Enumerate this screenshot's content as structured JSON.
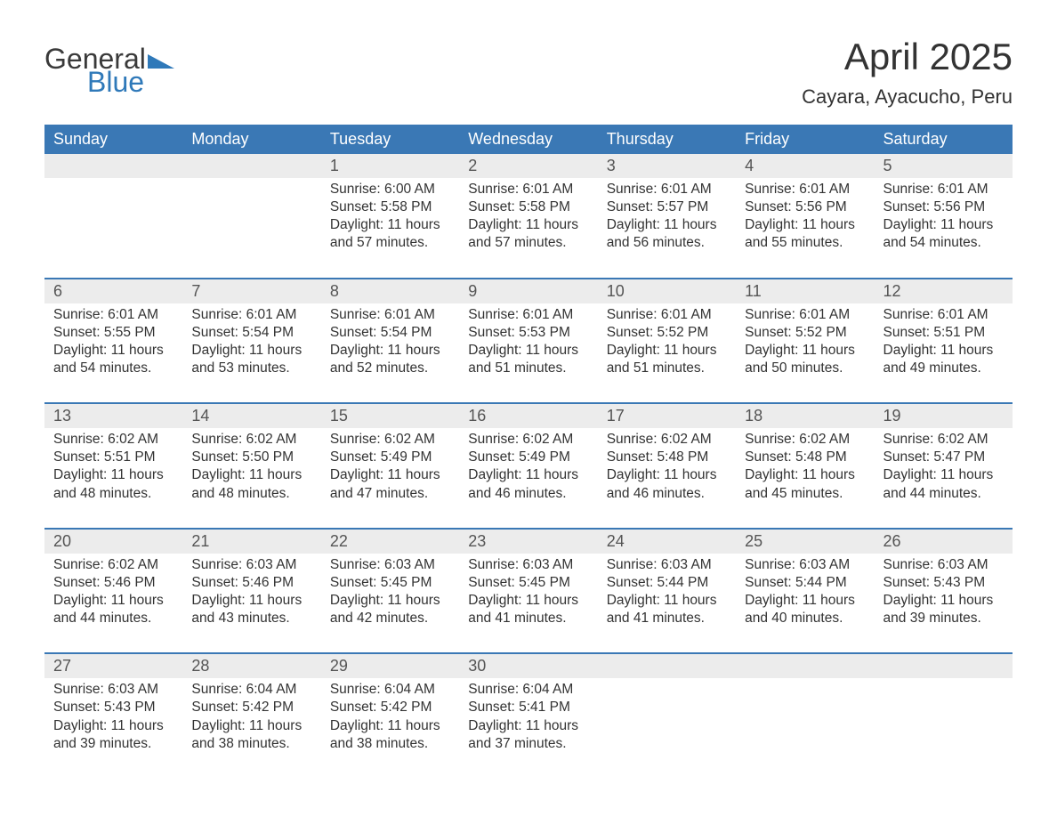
{
  "brand": {
    "word1": "General",
    "word2": "Blue",
    "color_general": "#3a3a3a",
    "color_blue": "#2f79b9",
    "triangle_color": "#2f79b9"
  },
  "title": "April 2025",
  "location": "Cayara, Ayacucho, Peru",
  "colors": {
    "header_bg": "#3a78b5",
    "header_text": "#ffffff",
    "daynum_bg": "#ececec",
    "daynum_text": "#555555",
    "row_border": "#3a78b5",
    "body_text": "#333333",
    "page_bg": "#ffffff"
  },
  "day_headers": [
    "Sunday",
    "Monday",
    "Tuesday",
    "Wednesday",
    "Thursday",
    "Friday",
    "Saturday"
  ],
  "weeks": [
    [
      null,
      null,
      {
        "n": "1",
        "sunrise": "6:00 AM",
        "sunset": "5:58 PM",
        "daylight": "11 hours and 57 minutes."
      },
      {
        "n": "2",
        "sunrise": "6:01 AM",
        "sunset": "5:58 PM",
        "daylight": "11 hours and 57 minutes."
      },
      {
        "n": "3",
        "sunrise": "6:01 AM",
        "sunset": "5:57 PM",
        "daylight": "11 hours and 56 minutes."
      },
      {
        "n": "4",
        "sunrise": "6:01 AM",
        "sunset": "5:56 PM",
        "daylight": "11 hours and 55 minutes."
      },
      {
        "n": "5",
        "sunrise": "6:01 AM",
        "sunset": "5:56 PM",
        "daylight": "11 hours and 54 minutes."
      }
    ],
    [
      {
        "n": "6",
        "sunrise": "6:01 AM",
        "sunset": "5:55 PM",
        "daylight": "11 hours and 54 minutes."
      },
      {
        "n": "7",
        "sunrise": "6:01 AM",
        "sunset": "5:54 PM",
        "daylight": "11 hours and 53 minutes."
      },
      {
        "n": "8",
        "sunrise": "6:01 AM",
        "sunset": "5:54 PM",
        "daylight": "11 hours and 52 minutes."
      },
      {
        "n": "9",
        "sunrise": "6:01 AM",
        "sunset": "5:53 PM",
        "daylight": "11 hours and 51 minutes."
      },
      {
        "n": "10",
        "sunrise": "6:01 AM",
        "sunset": "5:52 PM",
        "daylight": "11 hours and 51 minutes."
      },
      {
        "n": "11",
        "sunrise": "6:01 AM",
        "sunset": "5:52 PM",
        "daylight": "11 hours and 50 minutes."
      },
      {
        "n": "12",
        "sunrise": "6:01 AM",
        "sunset": "5:51 PM",
        "daylight": "11 hours and 49 minutes."
      }
    ],
    [
      {
        "n": "13",
        "sunrise": "6:02 AM",
        "sunset": "5:51 PM",
        "daylight": "11 hours and 48 minutes."
      },
      {
        "n": "14",
        "sunrise": "6:02 AM",
        "sunset": "5:50 PM",
        "daylight": "11 hours and 48 minutes."
      },
      {
        "n": "15",
        "sunrise": "6:02 AM",
        "sunset": "5:49 PM",
        "daylight": "11 hours and 47 minutes."
      },
      {
        "n": "16",
        "sunrise": "6:02 AM",
        "sunset": "5:49 PM",
        "daylight": "11 hours and 46 minutes."
      },
      {
        "n": "17",
        "sunrise": "6:02 AM",
        "sunset": "5:48 PM",
        "daylight": "11 hours and 46 minutes."
      },
      {
        "n": "18",
        "sunrise": "6:02 AM",
        "sunset": "5:48 PM",
        "daylight": "11 hours and 45 minutes."
      },
      {
        "n": "19",
        "sunrise": "6:02 AM",
        "sunset": "5:47 PM",
        "daylight": "11 hours and 44 minutes."
      }
    ],
    [
      {
        "n": "20",
        "sunrise": "6:02 AM",
        "sunset": "5:46 PM",
        "daylight": "11 hours and 44 minutes."
      },
      {
        "n": "21",
        "sunrise": "6:03 AM",
        "sunset": "5:46 PM",
        "daylight": "11 hours and 43 minutes."
      },
      {
        "n": "22",
        "sunrise": "6:03 AM",
        "sunset": "5:45 PM",
        "daylight": "11 hours and 42 minutes."
      },
      {
        "n": "23",
        "sunrise": "6:03 AM",
        "sunset": "5:45 PM",
        "daylight": "11 hours and 41 minutes."
      },
      {
        "n": "24",
        "sunrise": "6:03 AM",
        "sunset": "5:44 PM",
        "daylight": "11 hours and 41 minutes."
      },
      {
        "n": "25",
        "sunrise": "6:03 AM",
        "sunset": "5:44 PM",
        "daylight": "11 hours and 40 minutes."
      },
      {
        "n": "26",
        "sunrise": "6:03 AM",
        "sunset": "5:43 PM",
        "daylight": "11 hours and 39 minutes."
      }
    ],
    [
      {
        "n": "27",
        "sunrise": "6:03 AM",
        "sunset": "5:43 PM",
        "daylight": "11 hours and 39 minutes."
      },
      {
        "n": "28",
        "sunrise": "6:04 AM",
        "sunset": "5:42 PM",
        "daylight": "11 hours and 38 minutes."
      },
      {
        "n": "29",
        "sunrise": "6:04 AM",
        "sunset": "5:42 PM",
        "daylight": "11 hours and 38 minutes."
      },
      {
        "n": "30",
        "sunrise": "6:04 AM",
        "sunset": "5:41 PM",
        "daylight": "11 hours and 37 minutes."
      },
      null,
      null,
      null
    ]
  ],
  "labels": {
    "sunrise_prefix": "Sunrise: ",
    "sunset_prefix": "Sunset: ",
    "daylight_prefix": "Daylight: "
  },
  "typography": {
    "title_fontsize": 42,
    "location_fontsize": 22,
    "header_fontsize": 18,
    "daynum_fontsize": 18,
    "body_fontsize": 15.5
  }
}
